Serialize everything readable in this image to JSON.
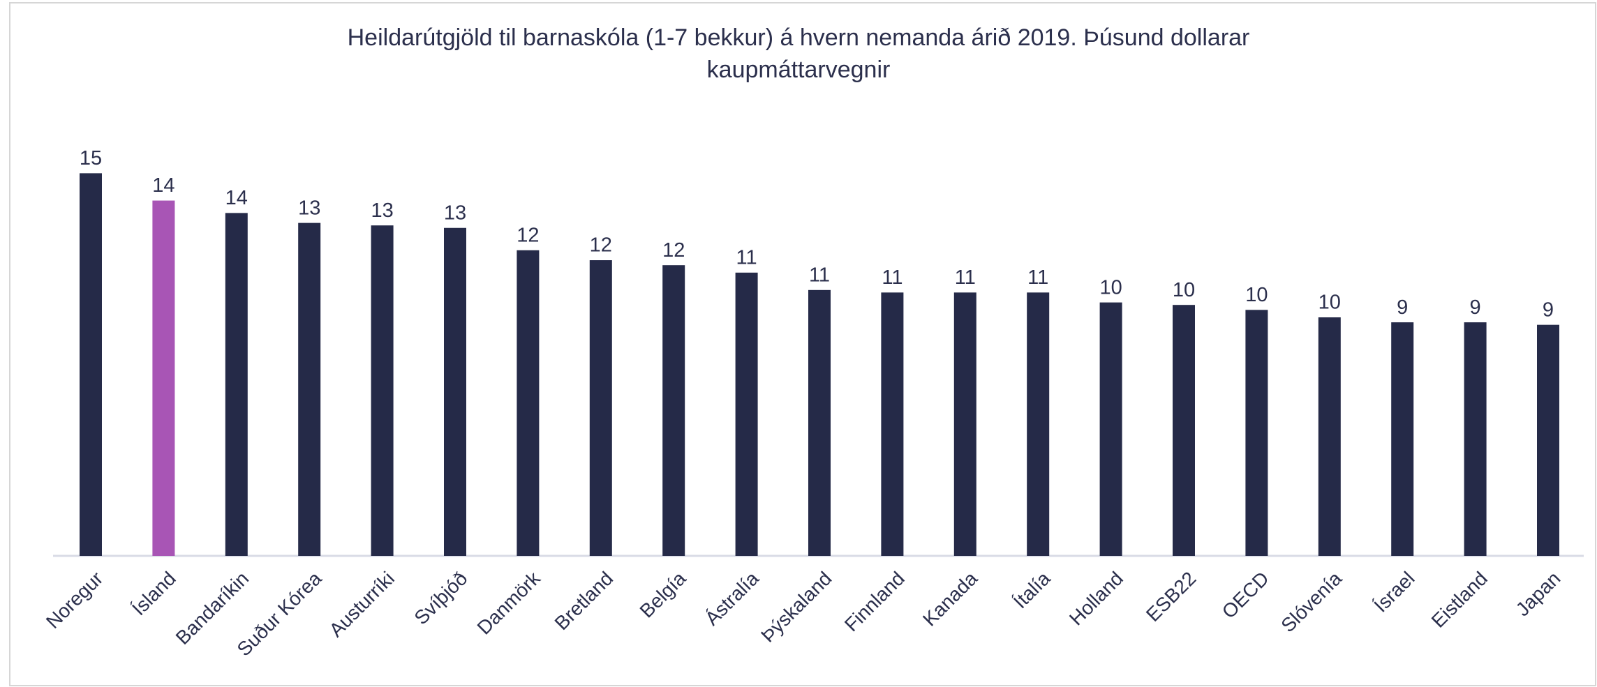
{
  "chart_data": {
    "type": "bar",
    "title": [
      "Heildarútgjöld til barnaskóla (1-7 bekkur) á hvern nemanda árið 2019. Þúsund dollarar",
      "kaupmáttarvegnir"
    ],
    "categories": [
      "Noregur",
      "Ísland",
      "Bandaríkin",
      "Suður Kórea",
      "Austurríki",
      "Svíþjóð",
      "Danmörk",
      "Bretland",
      "Belgía",
      "Ástralía",
      "Þýskaland",
      "Finnland",
      "Kanada",
      "Ítalía",
      "Holland",
      "ESB22",
      "OECD",
      "Slóvenía",
      "Ísrael",
      "Eistland",
      "Japan"
    ],
    "values": [
      15.4,
      14.3,
      13.8,
      13.4,
      13.3,
      13.2,
      12.3,
      11.9,
      11.7,
      11.4,
      10.7,
      10.6,
      10.6,
      10.6,
      10.2,
      10.1,
      9.9,
      9.6,
      9.4,
      9.4,
      9.3
    ],
    "value_labels": [
      "15",
      "14",
      "14",
      "13",
      "13",
      "13",
      "12",
      "12",
      "12",
      "11",
      "11",
      "11",
      "11",
      "11",
      "10",
      "10",
      "10",
      "10",
      "9",
      "9",
      "9"
    ],
    "color": "#252a48",
    "highlight": {
      "index": 1,
      "color": "#a855b5"
    },
    "ylim": [
      0,
      16
    ]
  }
}
